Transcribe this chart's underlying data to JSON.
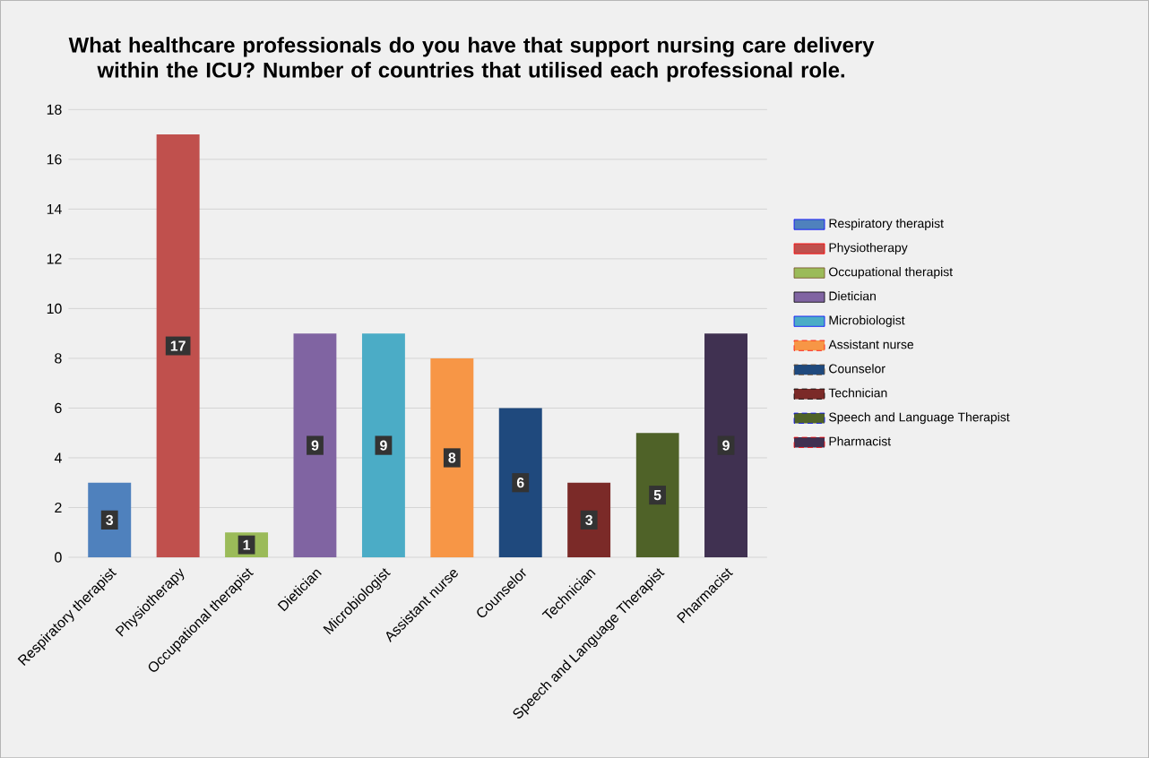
{
  "chart_data": {
    "type": "bar",
    "title": "What healthcare professionals do you have that support nursing care delivery within the ICU? Number of countries that utilised each professional role.",
    "categories": [
      "Respiratory therapist",
      "Physiotherapy",
      "Occupational therapist",
      "Dietician",
      "Microbiologist",
      "Assistant nurse",
      "Counselor",
      "Technician",
      "Speech and Language Therapist",
      "Pharmacist"
    ],
    "series": [
      {
        "name": "Respiratory therapist",
        "color": "#4f81bd",
        "values": [
          3,
          null,
          null,
          null,
          null,
          null,
          null,
          null,
          null,
          null
        ]
      },
      {
        "name": "Physiotherapy",
        "color": "#c0504d",
        "values": [
          null,
          17,
          null,
          null,
          null,
          null,
          null,
          null,
          null,
          null
        ]
      },
      {
        "name": "Occupational therapist",
        "color": "#9bbb59",
        "values": [
          null,
          null,
          1,
          null,
          null,
          null,
          null,
          null,
          null,
          null
        ]
      },
      {
        "name": "Dietician",
        "color": "#8064a2",
        "values": [
          null,
          null,
          null,
          9,
          null,
          null,
          null,
          null,
          null,
          null
        ]
      },
      {
        "name": "Microbiologist",
        "color": "#4bacc6",
        "values": [
          null,
          null,
          null,
          null,
          9,
          null,
          null,
          null,
          null,
          null
        ]
      },
      {
        "name": "Assistant nurse",
        "color": "#f79646",
        "values": [
          null,
          null,
          null,
          null,
          null,
          8,
          null,
          null,
          null,
          null
        ]
      },
      {
        "name": "Counselor",
        "color": "#1f497d",
        "values": [
          null,
          null,
          null,
          null,
          null,
          null,
          6,
          null,
          null,
          null
        ]
      },
      {
        "name": "Technician",
        "color": "#7b2a28",
        "values": [
          null,
          null,
          null,
          null,
          null,
          null,
          null,
          3,
          null,
          null
        ]
      },
      {
        "name": "Speech and Language Therapist",
        "color": "#4f6228",
        "values": [
          null,
          null,
          null,
          null,
          null,
          null,
          null,
          null,
          5,
          null
        ]
      },
      {
        "name": "Pharmacist",
        "color": "#403151",
        "values": [
          null,
          null,
          null,
          null,
          null,
          null,
          null,
          null,
          null,
          9
        ]
      }
    ],
    "ylim": [
      0,
      18
    ],
    "yticks": [
      0,
      2,
      4,
      6,
      8,
      10,
      12,
      14,
      16,
      18
    ],
    "grid": "y",
    "legend": "right",
    "data_labels": true
  }
}
